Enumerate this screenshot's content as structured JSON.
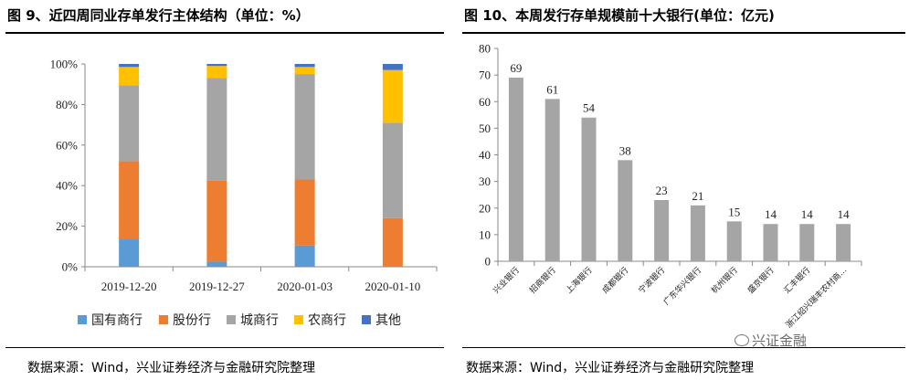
{
  "left": {
    "title": "图 9、近四周同业存单发行主体结构（单位：%）",
    "source": "数据来源：Wind，兴业证券经济与金融研究院整理"
  },
  "right": {
    "title": "图 10、本周发行存单规模前十大银行(单位：亿元)",
    "source": "数据来源：Wind，兴业证券经济与金融研究院整理"
  },
  "watermark": "兴证金融",
  "chart_data": [
    {
      "type": "bar",
      "stacked": true,
      "categories": [
        "2019-12-20",
        "2019-12-27",
        "2020-01-03",
        "2020-01-10"
      ],
      "series": [
        {
          "name": "国有商行",
          "color": "#5b9bd5",
          "values": [
            13.5,
            2.5,
            10.5,
            0
          ]
        },
        {
          "name": "股份行",
          "color": "#ed7d31",
          "values": [
            38.5,
            40,
            32.5,
            24
          ]
        },
        {
          "name": "城商行",
          "color": "#a5a5a5",
          "values": [
            37.5,
            50.5,
            52,
            47
          ]
        },
        {
          "name": "农商行",
          "color": "#ffc000",
          "values": [
            9,
            6,
            3.5,
            26
          ]
        },
        {
          "name": "其他",
          "color": "#4472c4",
          "values": [
            1.5,
            1,
            1.5,
            3
          ]
        }
      ],
      "yticks": [
        "0%",
        "20%",
        "40%",
        "60%",
        "80%",
        "100%"
      ],
      "ylim": [
        0,
        100
      ],
      "legend_position": "bottom"
    },
    {
      "type": "bar",
      "categories": [
        "兴业银行",
        "招商银行",
        "上海银行",
        "成都银行",
        "宁波银行",
        "广东华兴银行",
        "杭州银行",
        "盛京银行",
        "汇丰银行",
        "浙江绍兴瑞丰农村商..."
      ],
      "values": [
        69,
        61,
        54,
        38,
        23,
        21,
        15,
        14,
        14,
        14
      ],
      "color": "#a5a5a5",
      "yticks": [
        "0",
        "10",
        "20",
        "30",
        "40",
        "50",
        "60",
        "70",
        "80"
      ],
      "ylim": [
        0,
        80
      ]
    }
  ]
}
